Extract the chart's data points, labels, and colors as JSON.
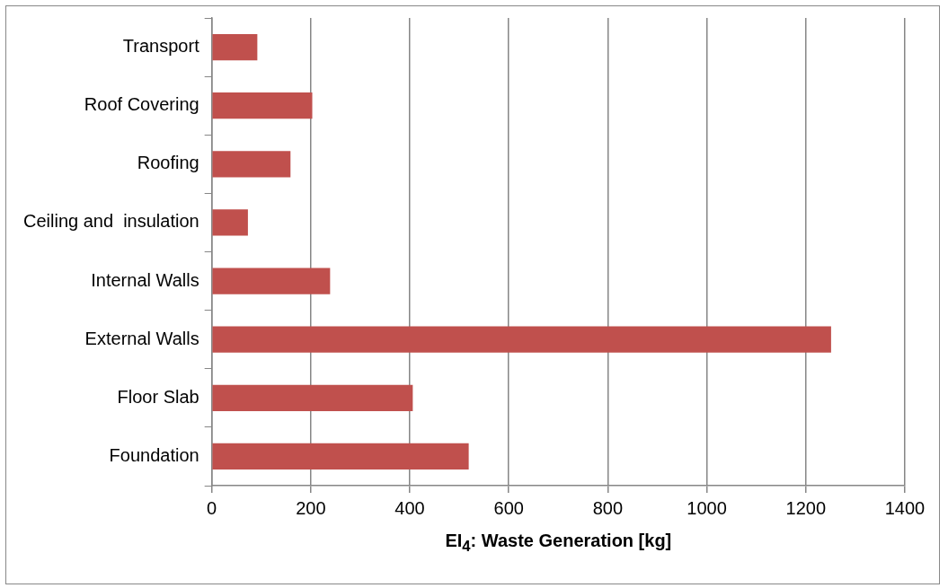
{
  "chart_data": {
    "type": "bar",
    "orientation": "horizontal",
    "xlabel": "EI$_{4}$: Waste Generation [kg]",
    "categories": [
      "Transport",
      "Roof Covering",
      "Roofing",
      "Ceiling and  insulation",
      "Internal Walls",
      "External Walls",
      "Floor Slab",
      "Foundation"
    ],
    "values": [
      92,
      203,
      159,
      73,
      239,
      1251,
      406,
      519
    ],
    "color": "#c0504d",
    "xlim": [
      0,
      1400
    ],
    "xticks": [
      0,
      200,
      400,
      600,
      800,
      1000,
      1200,
      1400
    ],
    "grid": "x",
    "legend": false
  }
}
